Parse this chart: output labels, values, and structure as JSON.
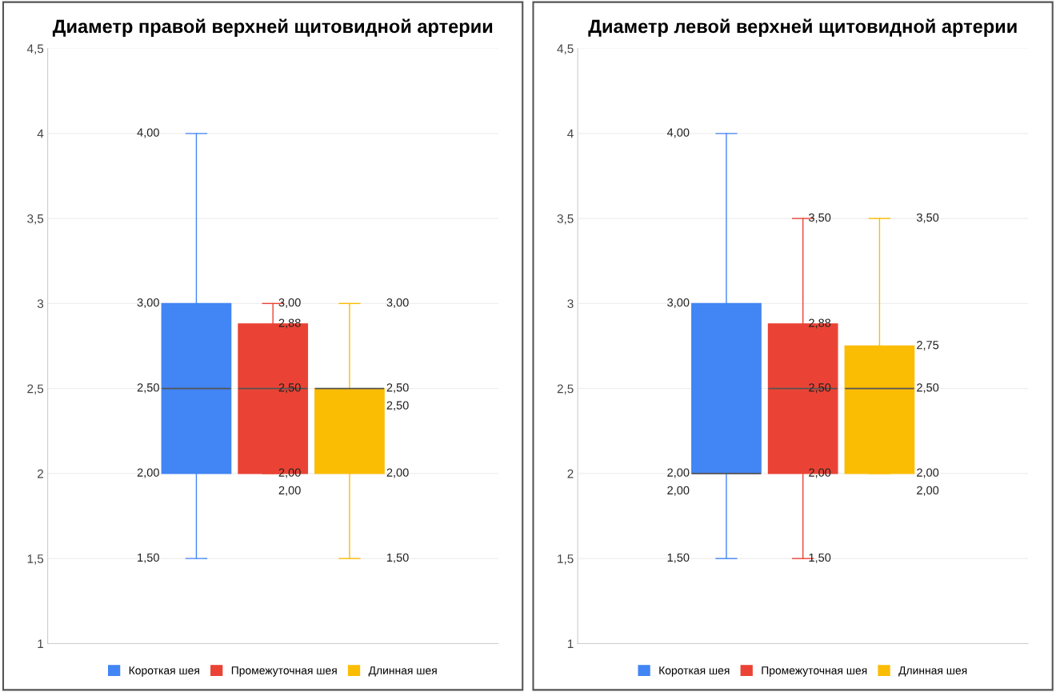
{
  "chart_data": [
    {
      "type": "box",
      "title": "Диаметр правой верхней щитовидной артерии",
      "categories": [
        null
      ],
      "ylim": [
        1,
        4.5
      ],
      "yticks": [
        1,
        {
          "value": 1.5,
          "label": "1,5"
        },
        2,
        {
          "value": 2.5,
          "label": "2,5"
        },
        3,
        {
          "value": 3.5,
          "label": "3,5"
        },
        4,
        {
          "value": 4.5,
          "label": "4,5"
        }
      ],
      "grid": "y",
      "legend": "bottom",
      "series": [
        {
          "name": "Короткая шея",
          "color": "#4285f4",
          "boxes": [
            {
              "low": 1.5,
              "q1": 2.0,
              "median": 2.5,
              "q3": 3.0,
              "high": 4.0
            }
          ]
        },
        {
          "name": "Промежуточная шея",
          "color": "#ea4335",
          "boxes": [
            {
              "low": 2.0,
              "q1": 2.0,
              "median": 2.5,
              "q3": 2.88,
              "high": 3.0
            }
          ]
        },
        {
          "name": "Длинная шея",
          "color": "#fbbc04",
          "boxes": [
            {
              "low": 1.5,
              "q1": 2.0,
              "median": 2.5,
              "q3": 2.5,
              "high": 3.0
            }
          ]
        }
      ],
      "annotations": [
        "4,00",
        "3,00",
        "2,50",
        "2,00",
        "1,50",
        "3,00",
        "2,88",
        "2,50",
        "2,00",
        "2,00",
        "3,00",
        "2,50",
        "2,50",
        "2,00",
        "1,50"
      ]
    },
    {
      "type": "box",
      "title": "Диаметр левой верхней щитовидной артерии",
      "categories": [
        null
      ],
      "ylim": [
        1,
        4.5
      ],
      "yticks": [
        1,
        {
          "value": 1.5,
          "label": "1,5"
        },
        2,
        {
          "value": 2.5,
          "label": "2,5"
        },
        3,
        {
          "value": 3.5,
          "label": "3,5"
        },
        4,
        {
          "value": 4.5,
          "label": "4,5"
        }
      ],
      "grid": "y",
      "legend": "bottom",
      "series": [
        {
          "name": "Короткая шея",
          "color": "#4285f4",
          "boxes": [
            {
              "low": 1.5,
              "q1": 2.0,
              "median": 2.0,
              "q3": 3.0,
              "high": 4.0
            }
          ]
        },
        {
          "name": "Промежуточная шея",
          "color": "#ea4335",
          "boxes": [
            {
              "low": 1.5,
              "q1": 2.0,
              "median": 2.5,
              "q3": 2.88,
              "high": 3.5
            }
          ]
        },
        {
          "name": "Длинная шея",
          "color": "#fbbc04",
          "boxes": [
            {
              "low": 2.0,
              "q1": 2.0,
              "median": 2.5,
              "q3": 2.75,
              "high": 3.5
            }
          ]
        }
      ],
      "annotations": [
        "4,00",
        "3,00",
        "2,00",
        "2,00",
        "1,50",
        "3,50",
        "2,88",
        "2,50",
        "2,00",
        "1,50",
        "3,50",
        "2,75",
        "2,50",
        "2,00",
        "2,00"
      ]
    }
  ]
}
